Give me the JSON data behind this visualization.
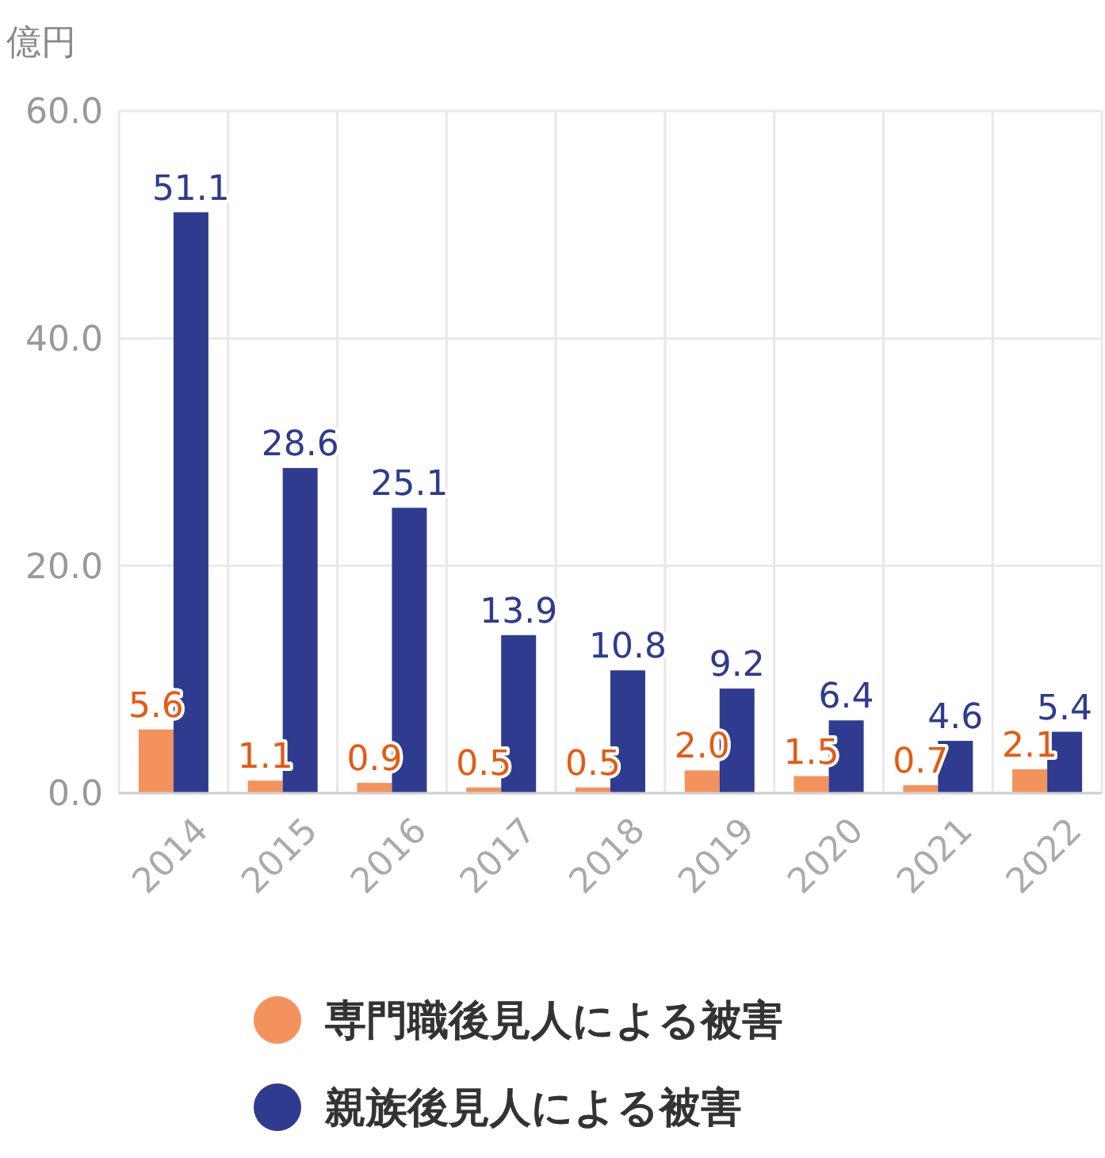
{
  "chart_data": {
    "type": "bar",
    "ylabel": "億円",
    "categories": [
      "2014",
      "2015",
      "2016",
      "2017",
      "2018",
      "2019",
      "2020",
      "2021",
      "2022"
    ],
    "series": [
      {
        "name": "専門職後見人による被害",
        "color": "#f4925e",
        "values": [
          5.6,
          1.1,
          0.9,
          0.5,
          0.5,
          2.0,
          1.5,
          0.7,
          2.1
        ],
        "value_labels": [
          "5.6",
          "1.1",
          "0.9",
          "0.5",
          "0.5",
          "2.0",
          "1.5",
          "0.7",
          "2.1"
        ]
      },
      {
        "name": "親族後見人による被害",
        "color": "#2e3b8f",
        "values": [
          51.1,
          28.6,
          25.1,
          13.9,
          10.8,
          9.2,
          6.4,
          4.6,
          5.4
        ],
        "value_labels": [
          "51.1",
          "28.6",
          "25.1",
          "13.9",
          "10.8",
          "9.2",
          "6.4",
          "4.6",
          "5.4"
        ]
      }
    ],
    "ylim": [
      0,
      60
    ],
    "yticks": [
      {
        "value": 0,
        "label": "0.0"
      },
      {
        "value": 20,
        "label": "20.0"
      },
      {
        "value": 40,
        "label": "40.0"
      },
      {
        "value": 60,
        "label": "60.0"
      }
    ],
    "grid": true,
    "legend": "bottom"
  }
}
